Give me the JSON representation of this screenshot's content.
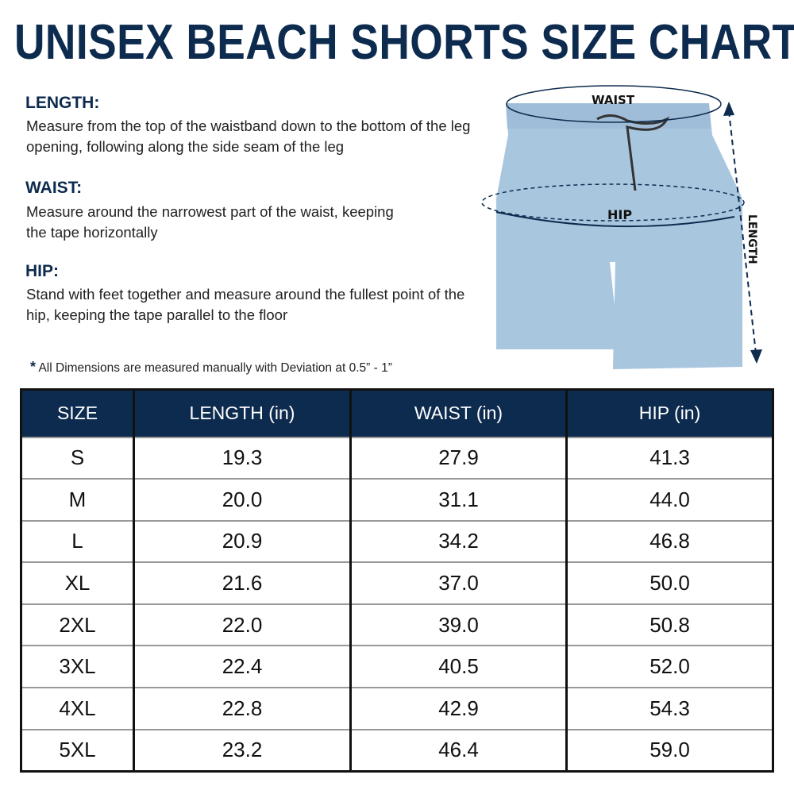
{
  "title": "UNISEX BEACH SHORTS SIZE CHART",
  "sections": [
    {
      "heading": "LENGTH:",
      "text": "Measure from the top of the waistband down to the bottom of the leg opening, following along the side seam of the leg"
    },
    {
      "heading": "WAIST:",
      "text": "Measure around the narrowest part of the waist, keeping the tape horizontally"
    },
    {
      "heading": "HIP:",
      "text": "Stand with feet together and measure around the fullest point of the hip, keeping the tape parallel to the floor"
    }
  ],
  "note": {
    "mark": "*",
    "text": "All Dimensions are measured manually with Deviation at 0.5” - 1”"
  },
  "diagram": {
    "waist_label": "WAIST",
    "hip_label": "HIP",
    "length_label": "LENGTH",
    "fabric_color": "#a9c6df",
    "accent_color": "#0d2b4e"
  },
  "table": {
    "headers": [
      "SIZE",
      "LENGTH (in)",
      "WAIST (in)",
      "HIP (in)"
    ],
    "rows": [
      [
        "S",
        "19.3",
        "27.9",
        "41.3"
      ],
      [
        "M",
        "20.0",
        "31.1",
        "44.0"
      ],
      [
        "L",
        "20.9",
        "34.2",
        "46.8"
      ],
      [
        "XL",
        "21.6",
        "37.0",
        "50.0"
      ],
      [
        "2XL",
        "22.0",
        "39.0",
        "50.8"
      ],
      [
        "3XL",
        "22.4",
        "40.5",
        "52.0"
      ],
      [
        "4XL",
        "22.8",
        "42.9",
        "54.3"
      ],
      [
        "5XL",
        "23.2",
        "46.4",
        "59.0"
      ]
    ]
  }
}
